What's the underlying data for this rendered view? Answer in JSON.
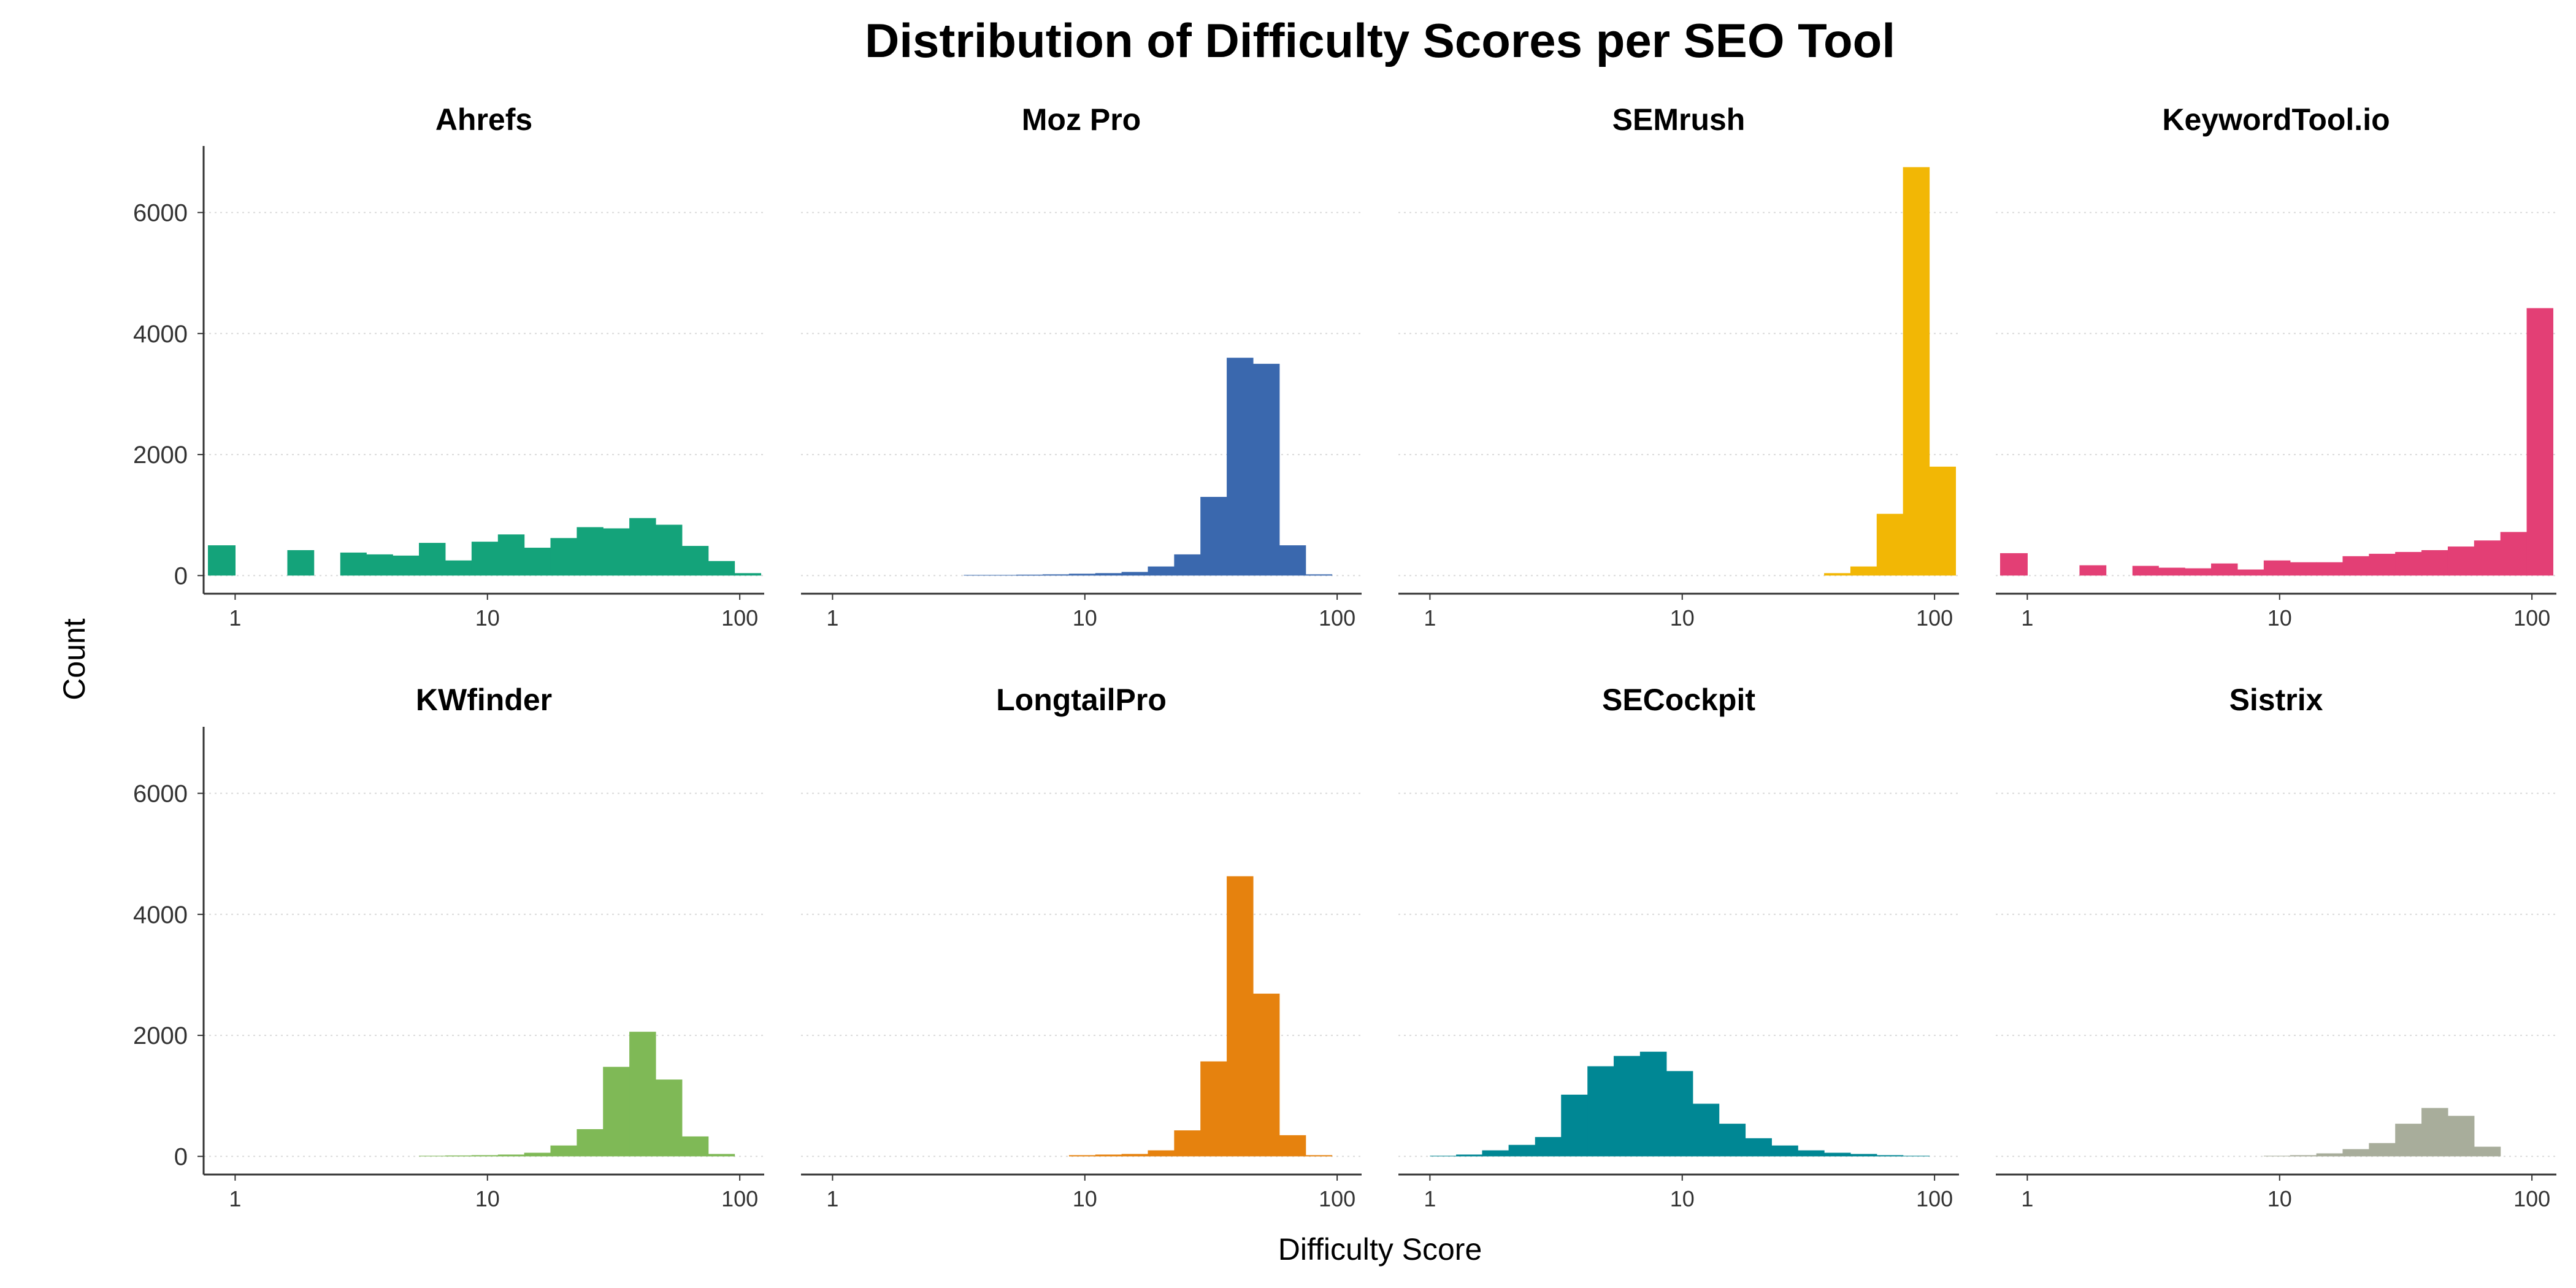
{
  "chart_data": {
    "type": "bar",
    "title": "Distribution of Difficulty Scores per SEO Tool",
    "xlabel": "Difficulty Score",
    "ylabel": "Count",
    "x_scale": "log10",
    "xlim": [
      0.75,
      125
    ],
    "x_ticks": [
      1,
      10,
      100
    ],
    "x_tick_labels": [
      "1",
      "10",
      "100"
    ],
    "ylim": [
      -300,
      7100
    ],
    "y_ticks": [
      0,
      2000,
      4000,
      6000
    ],
    "y_tick_labels": [
      "0",
      "2000",
      "4000",
      "6000"
    ],
    "grid": "horizontal dotted",
    "layout": "2 rows x 4 facets",
    "bin_edges": [
      0.78,
      1.0,
      1.27,
      1.61,
      2.05,
      2.61,
      3.31,
      4.21,
      5.35,
      6.8,
      8.65,
      11.0,
      13.98,
      17.77,
      22.59,
      28.71,
      36.5,
      46.4,
      58.98,
      74.98,
      95.31,
      121.16
    ],
    "panels": [
      {
        "name": "Ahrefs",
        "color": "#14a37a",
        "counts": [
          500,
          0,
          0,
          420,
          0,
          380,
          350,
          330,
          540,
          250,
          560,
          680,
          460,
          620,
          800,
          780,
          950,
          840,
          490,
          240,
          40
        ]
      },
      {
        "name": "Moz Pro",
        "color": "#3a68ae",
        "counts": [
          0,
          0,
          0,
          0,
          0,
          0,
          10,
          10,
          15,
          20,
          30,
          40,
          60,
          150,
          350,
          1300,
          3600,
          3500,
          500,
          20,
          0
        ]
      },
      {
        "name": "SEMrush",
        "color": "#f2b705",
        "counts": [
          0,
          0,
          0,
          0,
          0,
          0,
          0,
          0,
          0,
          0,
          0,
          0,
          0,
          0,
          0,
          0,
          40,
          150,
          1020,
          6750,
          1800
        ]
      },
      {
        "name": "KeywordTool.io",
        "color": "#e33f75",
        "counts": [
          370,
          0,
          0,
          170,
          0,
          160,
          130,
          120,
          200,
          100,
          250,
          220,
          220,
          320,
          360,
          390,
          420,
          480,
          580,
          720,
          4420
        ]
      },
      {
        "name": "KWfinder",
        "color": "#7fb956",
        "counts": [
          0,
          0,
          0,
          0,
          0,
          0,
          0,
          0,
          10,
          15,
          20,
          30,
          60,
          180,
          450,
          1480,
          2060,
          1270,
          330,
          40,
          0
        ]
      },
      {
        "name": "LongtailPro",
        "color": "#e6820e",
        "counts": [
          0,
          0,
          0,
          0,
          0,
          0,
          0,
          0,
          0,
          0,
          20,
          30,
          40,
          100,
          430,
          1570,
          4630,
          2690,
          350,
          20,
          0
        ]
      },
      {
        "name": "SECockpit",
        "color": "#008794",
        "counts": [
          0,
          10,
          30,
          100,
          190,
          320,
          1020,
          1490,
          1660,
          1730,
          1410,
          870,
          540,
          300,
          180,
          100,
          60,
          40,
          20,
          10,
          0
        ]
      },
      {
        "name": "Sistrix",
        "color": "#a8ad9b",
        "counts": [
          0,
          0,
          0,
          0,
          0,
          0,
          0,
          0,
          0,
          0,
          10,
          20,
          50,
          120,
          220,
          540,
          800,
          670,
          160,
          0,
          0
        ]
      }
    ]
  }
}
